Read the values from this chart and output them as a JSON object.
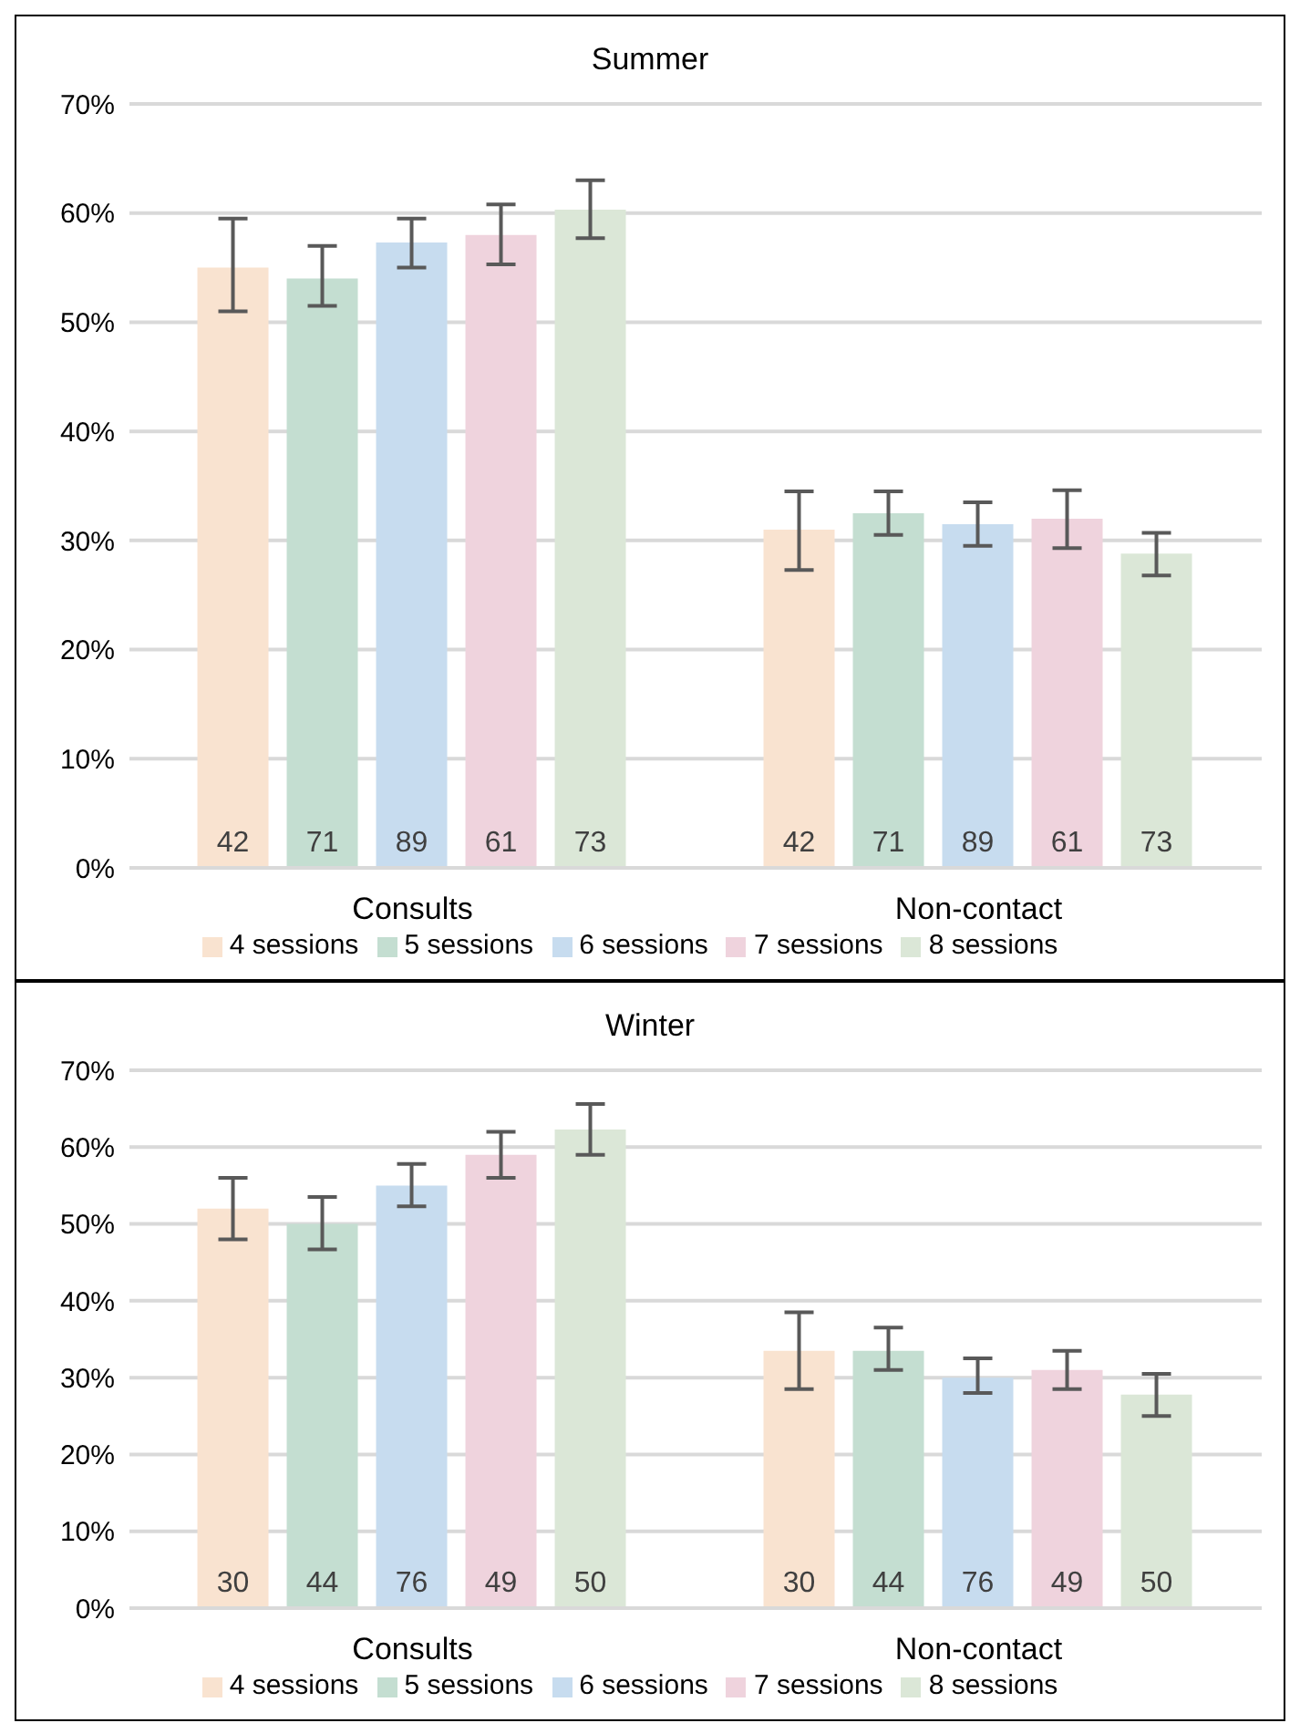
{
  "chart_data": [
    {
      "type": "bar",
      "title": "Summer",
      "categories": [
        "Consults",
        "Non-contact"
      ],
      "ylim": [
        0,
        70
      ],
      "yticks": [
        {
          "value": 0,
          "label": "0%"
        },
        {
          "value": 10,
          "label": "10%"
        },
        {
          "value": 20,
          "label": "20%"
        },
        {
          "value": 30,
          "label": "30%"
        },
        {
          "value": 40,
          "label": "40%"
        },
        {
          "value": 50,
          "label": "50%"
        },
        {
          "value": 60,
          "label": "60%"
        },
        {
          "value": 70,
          "label": "70%"
        }
      ],
      "grid": "y",
      "legend": "bottom",
      "series": [
        {
          "name": "4 sessions",
          "color": "#f9e3d0",
          "values": [
            55,
            31
          ],
          "errors": [
            [
              51,
              59.5
            ],
            [
              27.3,
              34.5
            ]
          ]
        },
        {
          "name": "5 sessions",
          "color": "#c4ded1",
          "values": [
            54,
            32.5
          ],
          "errors": [
            [
              51.5,
              57
            ],
            [
              30.5,
              34.5
            ]
          ]
        },
        {
          "name": "6 sessions",
          "color": "#c7dcef",
          "values": [
            57.3,
            31.5
          ],
          "errors": [
            [
              55,
              59.5
            ],
            [
              29.5,
              33.5
            ]
          ]
        },
        {
          "name": "7 sessions",
          "color": "#efd3dd",
          "values": [
            58,
            32
          ],
          "errors": [
            [
              55.3,
              60.8
            ],
            [
              29.3,
              34.6
            ]
          ]
        },
        {
          "name": "8 sessions",
          "color": "#dbe7d7",
          "values": [
            60.3,
            28.8
          ],
          "errors": [
            [
              57.7,
              63
            ],
            [
              26.8,
              30.7
            ]
          ]
        }
      ],
      "annotations": [
        "42",
        "71",
        "89",
        "61",
        "73",
        "42",
        "71",
        "89",
        "61",
        "73"
      ]
    },
    {
      "type": "bar",
      "title": "Winter",
      "categories": [
        "Consults",
        "Non-contact"
      ],
      "ylim": [
        0,
        70
      ],
      "yticks": [
        {
          "value": 0,
          "label": "0%"
        },
        {
          "value": 10,
          "label": "10%"
        },
        {
          "value": 20,
          "label": "20%"
        },
        {
          "value": 30,
          "label": "30%"
        },
        {
          "value": 40,
          "label": "40%"
        },
        {
          "value": 50,
          "label": "50%"
        },
        {
          "value": 60,
          "label": "60%"
        },
        {
          "value": 70,
          "label": "70%"
        }
      ],
      "grid": "y",
      "legend": "bottom",
      "series": [
        {
          "name": "4 sessions",
          "color": "#f9e3d0",
          "values": [
            52,
            33.5
          ],
          "errors": [
            [
              48,
              56
            ],
            [
              28.5,
              38.5
            ]
          ]
        },
        {
          "name": "5 sessions",
          "color": "#c4ded1",
          "values": [
            50,
            33.5
          ],
          "errors": [
            [
              46.7,
              53.5
            ],
            [
              31,
              36.5
            ]
          ]
        },
        {
          "name": "6 sessions",
          "color": "#c7dcef",
          "values": [
            55,
            30
          ],
          "errors": [
            [
              52.3,
              57.8
            ],
            [
              28,
              32.5
            ]
          ]
        },
        {
          "name": "7 sessions",
          "color": "#efd3dd",
          "values": [
            59,
            31
          ],
          "errors": [
            [
              56,
              62
            ],
            [
              28.5,
              33.5
            ]
          ]
        },
        {
          "name": "8 sessions",
          "color": "#dbe7d7",
          "values": [
            62.3,
            27.8
          ],
          "errors": [
            [
              59,
              65.6
            ],
            [
              25,
              30.5
            ]
          ]
        }
      ],
      "annotations": [
        "30",
        "44",
        "76",
        "49",
        "50",
        "30",
        "44",
        "76",
        "49",
        "50"
      ]
    }
  ]
}
